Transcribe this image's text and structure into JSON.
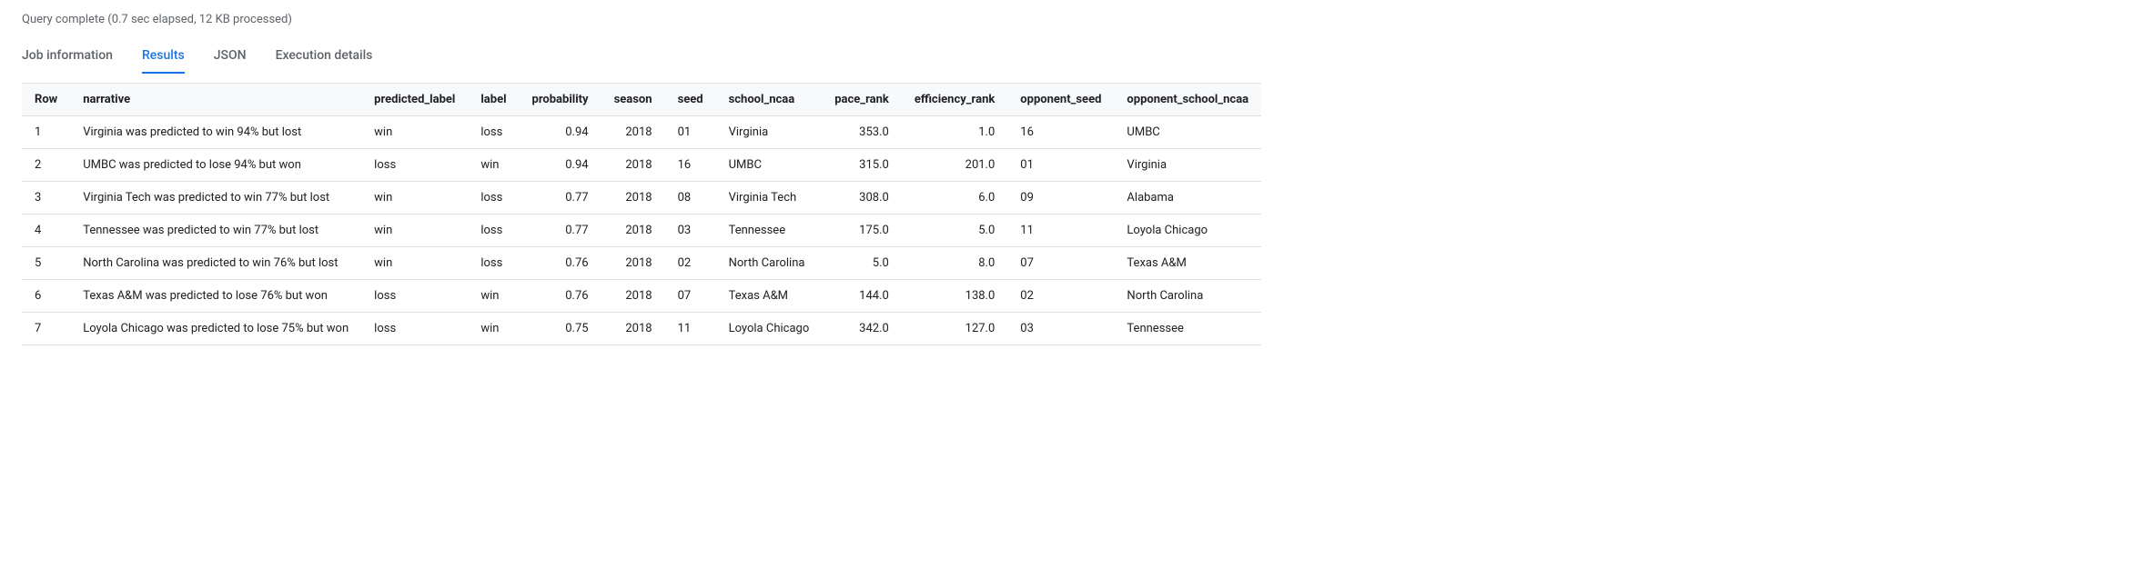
{
  "status": "Query complete (0.7 sec elapsed, 12 KB processed)",
  "tabs": {
    "items": [
      {
        "label": "Job information",
        "active": false
      },
      {
        "label": "Results",
        "active": true
      },
      {
        "label": "JSON",
        "active": false
      },
      {
        "label": "Execution details",
        "active": false
      }
    ]
  },
  "table": {
    "columns": [
      {
        "key": "row",
        "label": "Row",
        "align": "lft"
      },
      {
        "key": "narrative",
        "label": "narrative",
        "align": "lft"
      },
      {
        "key": "predicted_label",
        "label": "predicted_label",
        "align": "lft"
      },
      {
        "key": "label",
        "label": "label",
        "align": "lft"
      },
      {
        "key": "probability",
        "label": "probability",
        "align": "num"
      },
      {
        "key": "season",
        "label": "season",
        "align": "num"
      },
      {
        "key": "seed",
        "label": "seed",
        "align": "lft"
      },
      {
        "key": "school_ncaa",
        "label": "school_ncaa",
        "align": "lft"
      },
      {
        "key": "pace_rank",
        "label": "pace_rank",
        "align": "num"
      },
      {
        "key": "efficiency_rank",
        "label": "efficiency_rank",
        "align": "num"
      },
      {
        "key": "opponent_seed",
        "label": "opponent_seed",
        "align": "lft"
      },
      {
        "key": "opponent_school_ncaa",
        "label": "opponent_school_ncaa",
        "align": "lft"
      }
    ],
    "rows": [
      {
        "row": "1",
        "narrative": "Virginia was predicted to win 94% but lost",
        "predicted_label": "win",
        "label": "loss",
        "probability": "0.94",
        "season": "2018",
        "seed": "01",
        "school_ncaa": "Virginia",
        "pace_rank": "353.0",
        "efficiency_rank": "1.0",
        "opponent_seed": "16",
        "opponent_school_ncaa": "UMBC"
      },
      {
        "row": "2",
        "narrative": "UMBC was predicted to lose 94% but won",
        "predicted_label": "loss",
        "label": "win",
        "probability": "0.94",
        "season": "2018",
        "seed": "16",
        "school_ncaa": "UMBC",
        "pace_rank": "315.0",
        "efficiency_rank": "201.0",
        "opponent_seed": "01",
        "opponent_school_ncaa": "Virginia"
      },
      {
        "row": "3",
        "narrative": "Virginia Tech was predicted to win 77% but lost",
        "predicted_label": "win",
        "label": "loss",
        "probability": "0.77",
        "season": "2018",
        "seed": "08",
        "school_ncaa": "Virginia Tech",
        "pace_rank": "308.0",
        "efficiency_rank": "6.0",
        "opponent_seed": "09",
        "opponent_school_ncaa": "Alabama"
      },
      {
        "row": "4",
        "narrative": "Tennessee was predicted to win 77% but lost",
        "predicted_label": "win",
        "label": "loss",
        "probability": "0.77",
        "season": "2018",
        "seed": "03",
        "school_ncaa": "Tennessee",
        "pace_rank": "175.0",
        "efficiency_rank": "5.0",
        "opponent_seed": "11",
        "opponent_school_ncaa": "Loyola Chicago"
      },
      {
        "row": "5",
        "narrative": "North Carolina was predicted to win 76% but lost",
        "predicted_label": "win",
        "label": "loss",
        "probability": "0.76",
        "season": "2018",
        "seed": "02",
        "school_ncaa": "North Carolina",
        "pace_rank": "5.0",
        "efficiency_rank": "8.0",
        "opponent_seed": "07",
        "opponent_school_ncaa": "Texas A&M"
      },
      {
        "row": "6",
        "narrative": "Texas A&M was predicted to lose 76% but won",
        "predicted_label": "loss",
        "label": "win",
        "probability": "0.76",
        "season": "2018",
        "seed": "07",
        "school_ncaa": "Texas A&M",
        "pace_rank": "144.0",
        "efficiency_rank": "138.0",
        "opponent_seed": "02",
        "opponent_school_ncaa": "North Carolina"
      },
      {
        "row": "7",
        "narrative": "Loyola Chicago was predicted to lose 75% but won",
        "predicted_label": "loss",
        "label": "win",
        "probability": "0.75",
        "season": "2018",
        "seed": "11",
        "school_ncaa": "Loyola Chicago",
        "pace_rank": "342.0",
        "efficiency_rank": "127.0",
        "opponent_seed": "03",
        "opponent_school_ncaa": "Tennessee"
      }
    ]
  },
  "colors": {
    "accent": "#1a73e8",
    "text_muted": "#5f6368",
    "header_bg": "#f8f9fa",
    "border": "#e0e0e0",
    "background": "#ffffff"
  }
}
